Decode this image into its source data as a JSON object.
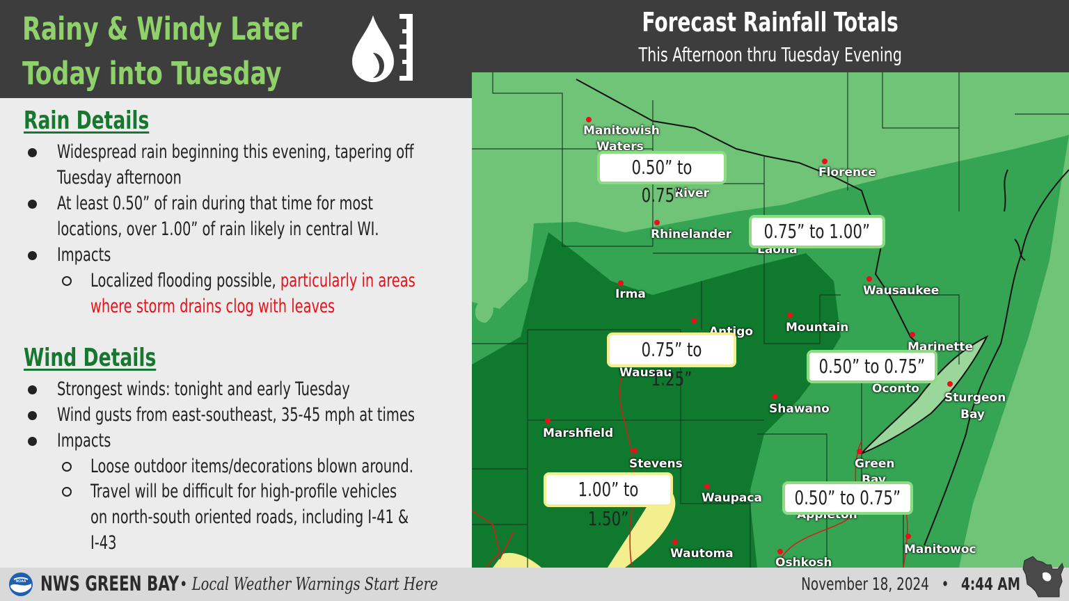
{
  "header": {
    "title_line1": "Rainy & Windy Later",
    "title_line2": "Today into Tuesday",
    "icon": "rain-gauge-icon"
  },
  "map_header": {
    "title": "Forecast Rainfall Totals",
    "subtitle": "This Afternoon thru Tuesday Evening"
  },
  "rain": {
    "title": "Rain Details",
    "b1_l1": "Widespread rain beginning this evening, tapering off",
    "b1_l2": "Tuesday afternoon",
    "b2_l1": "At least 0.50” of rain during that time for most",
    "b2_l2": "locations, over 1.00” of rain likely in central WI.",
    "b3": "Impacts",
    "s1_l1a": "Localized flooding possible, ",
    "s1_l1b": "particularly in areas",
    "s1_l2": "where storm drains clog with leaves"
  },
  "wind": {
    "title": "Wind Details",
    "b1": "Strongest winds: tonight and early Tuesday",
    "b2": "Wind gusts from east-southeast, 35-45 mph at times",
    "b3": "Impacts",
    "s1": "Loose outdoor items/decorations blown around.",
    "s2_l1": "Travel will be difficult for high-profile vehicles",
    "s2_l2": "on north-south oriented roads, including I-41 &",
    "s2_l3": "I-43"
  },
  "map": {
    "colors": {
      "light": "#6fc477",
      "medium": "#35a553",
      "dark": "#0f7a2e",
      "yellow": "#f4ef8e",
      "lake": "#9bd79a",
      "city_dot": "#e8111a"
    },
    "rainfall_labels": [
      "0.50” to 0.75”",
      "0.75” to 1.00”",
      "0.75” to 1.25”",
      "0.50” to 0.75”",
      "1.00” to 1.50”",
      "0.50” to 0.75”"
    ],
    "cities": [
      "Manitowish",
      "Waters",
      "River",
      "Florence",
      "Rhinelander",
      "Laona",
      "Irma",
      "Wausaukee",
      "Antigo",
      "Mountain",
      "Marinette",
      "Wausau",
      "Oconto",
      "Sturgeon",
      "Bay",
      "Shawano",
      "Marshfield",
      "Stevens",
      "Green",
      "Bay",
      "Waupaca",
      "Appleton",
      "Wautoma",
      "Oshkosh",
      "Manitowoc"
    ]
  },
  "footer": {
    "brand": "NWS GREEN BAY",
    "separator": "•",
    "tagline": "Local Weather Warnings Start Here",
    "date": "November 18, 2024",
    "time": "4:44 AM",
    "logo_icon": "noaa-logo-icon",
    "state_icon": "wisconsin-icon"
  }
}
